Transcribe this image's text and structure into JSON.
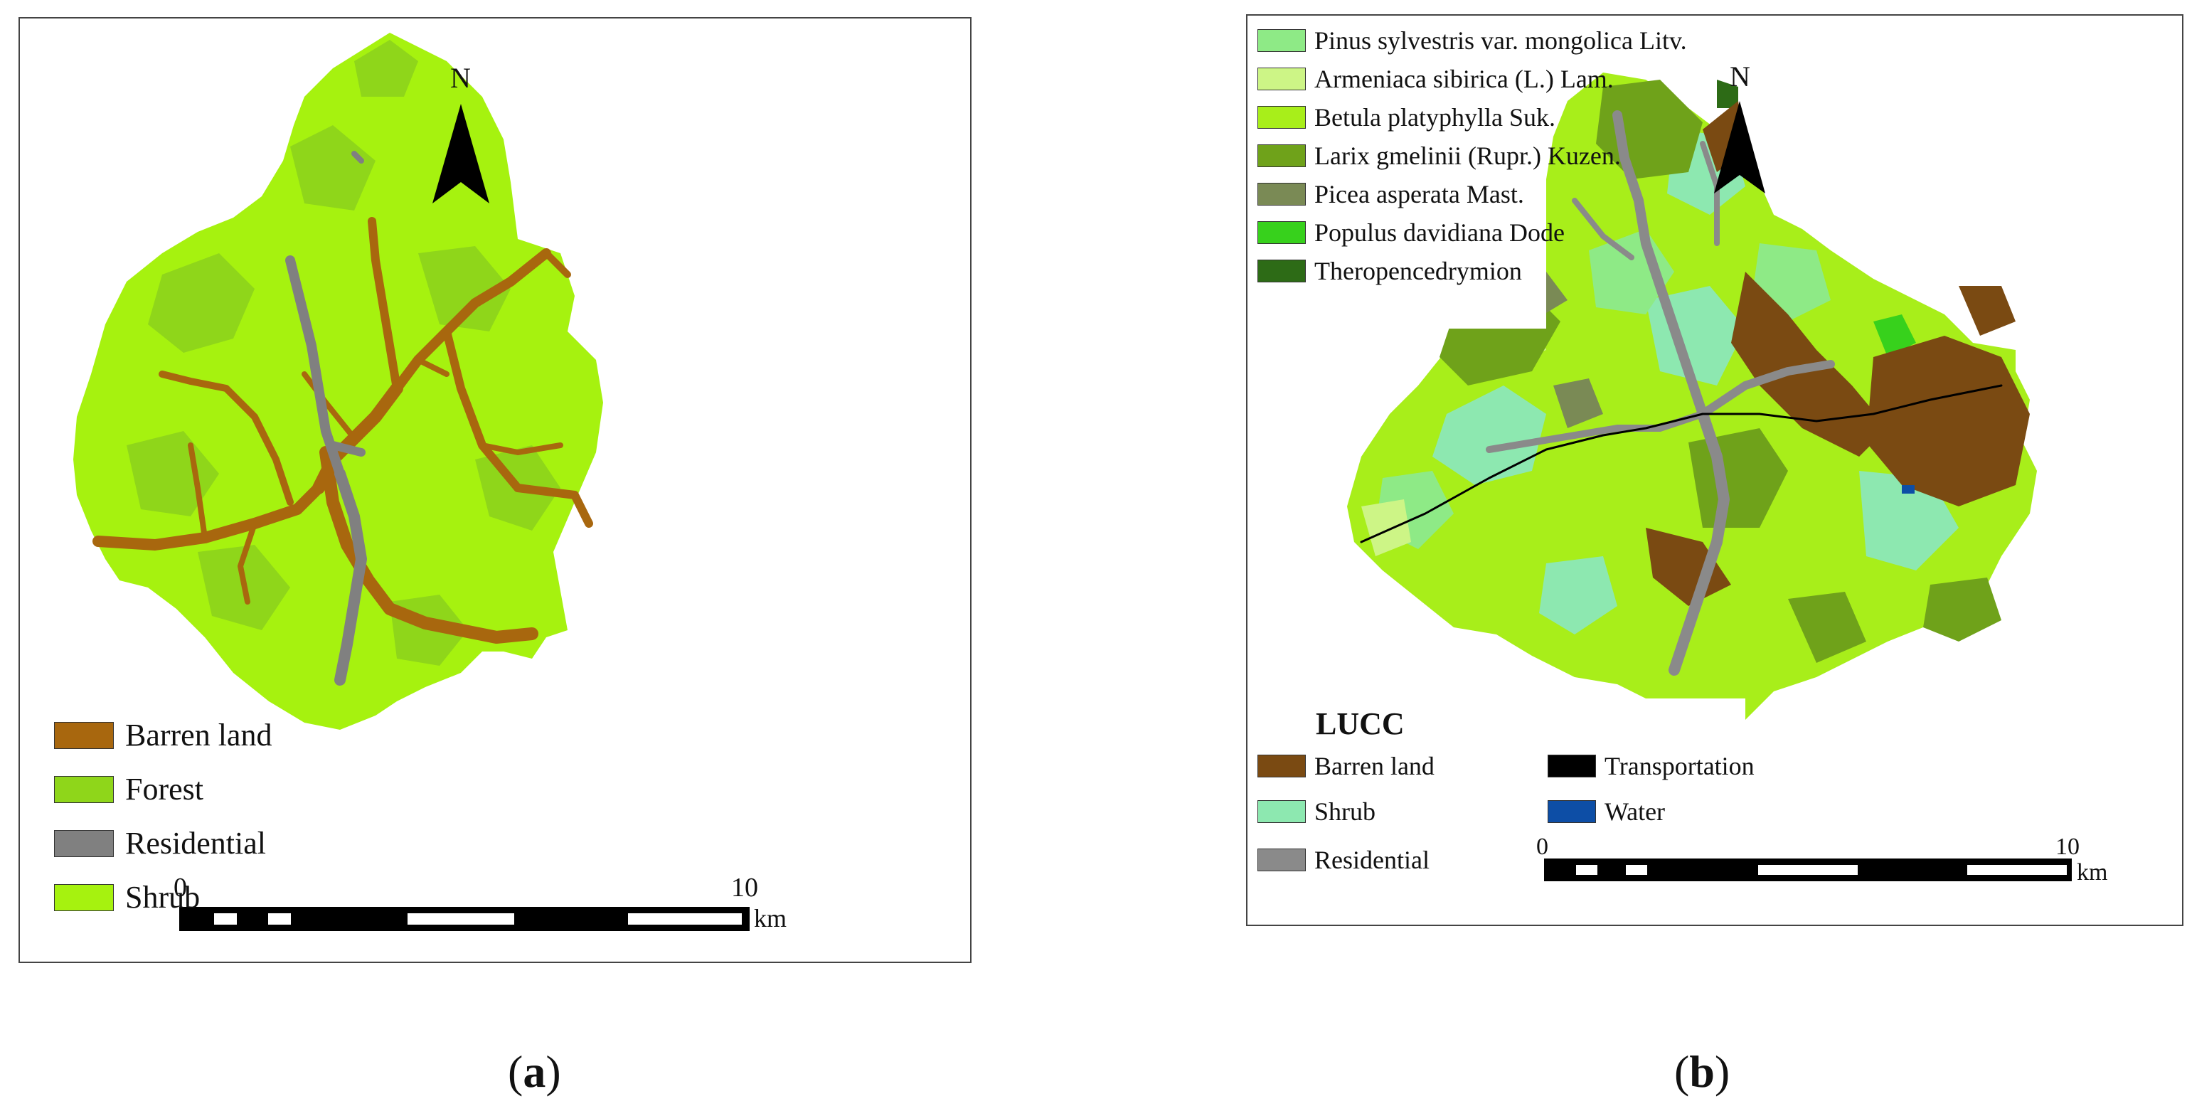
{
  "panel_a": {
    "north": "N",
    "legend": [
      {
        "label": "Barren land",
        "color": "#a8670e"
      },
      {
        "label": "Forest",
        "color": "#8fd61a"
      },
      {
        "label": "Residential",
        "color": "#808080"
      },
      {
        "label": "Shrub",
        "color": "#a6f20f"
      }
    ],
    "scale": {
      "start": "0",
      "end": "10",
      "unit": "km"
    },
    "caption_open": "(",
    "caption_letter": "a",
    "caption_close": ")"
  },
  "panel_b": {
    "north": "N",
    "species_legend": [
      {
        "label": "Pinus sylvestris var. mongolica Litv.",
        "color": "#8eea86"
      },
      {
        "label": "Armeniaca sibirica (L.) Lam.",
        "color": "#cdf586"
      },
      {
        "label": "Betula platyphylla Suk.",
        "color": "#a8ee1a"
      },
      {
        "label": "Larix gmelinii (Rupr.) Kuzen.",
        "color": "#6fa21a"
      },
      {
        "label": "Picea asperata Mast.",
        "color": "#7a8a55"
      },
      {
        "label": "Populus davidiana Dode",
        "color": "#37d11c"
      },
      {
        "label": "Theropencedrymion",
        "color": "#2d6b16"
      }
    ],
    "lucc_title": "LUCC",
    "lucc_legend_left": [
      {
        "label": "Barren land",
        "color": "#7a4a12"
      },
      {
        "label": "Shrub",
        "color": "#8de8b0"
      },
      {
        "label": "Residential",
        "color": "#8a8a8a"
      }
    ],
    "lucc_legend_right": [
      {
        "label": "Transportation",
        "color": "#000000"
      },
      {
        "label": "Water",
        "color": "#0d4ea6"
      }
    ],
    "scale": {
      "start": "0",
      "end": "10",
      "unit": "km"
    },
    "caption_open": "(",
    "caption_letter": "b",
    "caption_close": ")"
  }
}
